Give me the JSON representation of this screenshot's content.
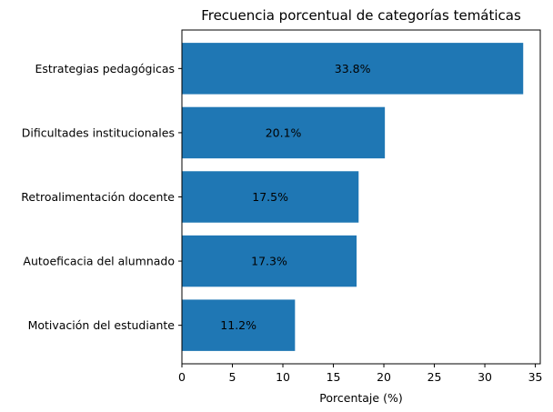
{
  "chart_data": {
    "type": "bar",
    "orientation": "horizontal",
    "title": "Frecuencia porcentual de categorías temáticas",
    "xlabel": "Porcentaje (%)",
    "ylabel": "",
    "categories": [
      "Estrategias pedagógicas",
      "Dificultades institucionales",
      "Retroalimentación docente",
      "Autoeficacia del alumnado",
      "Motivación del estudiante"
    ],
    "values": [
      33.8,
      20.1,
      17.5,
      17.3,
      11.2
    ],
    "data_labels": [
      "33.8%",
      "20.1%",
      "17.5%",
      "17.3%",
      "11.2%"
    ],
    "xlim": [
      0,
      35.49
    ],
    "xticks": [
      0,
      5,
      10,
      15,
      20,
      25,
      30,
      35
    ],
    "bar_color": "#1f77b4",
    "grid": false,
    "legend": "none"
  }
}
